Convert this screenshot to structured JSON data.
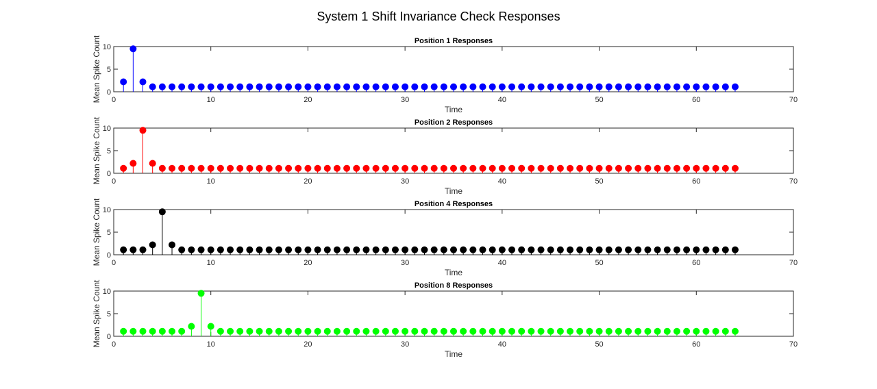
{
  "figure": {
    "title": "System 1 Shift Invariance Check Responses"
  },
  "chart_data": [
    {
      "type": "stem",
      "title": "Position 1 Responses",
      "xlabel": "Time",
      "ylabel": "Mean Spike Count",
      "xlim": [
        0,
        70
      ],
      "ylim": [
        0,
        10
      ],
      "xticks": [
        0,
        10,
        20,
        30,
        40,
        50,
        60,
        70
      ],
      "yticks": [
        0,
        5,
        10
      ],
      "color": "#0000ff",
      "peak_index": 2,
      "values": [
        2.2,
        9.5,
        2.2,
        1.1,
        1.1,
        1.1,
        1.1,
        1.1,
        1.1,
        1.1,
        1.1,
        1.1,
        1.1,
        1.1,
        1.1,
        1.1,
        1.1,
        1.1,
        1.1,
        1.1,
        1.1,
        1.1,
        1.1,
        1.1,
        1.1,
        1.1,
        1.1,
        1.1,
        1.1,
        1.1,
        1.1,
        1.1,
        1.1,
        1.1,
        1.1,
        1.1,
        1.1,
        1.1,
        1.1,
        1.1,
        1.1,
        1.1,
        1.1,
        1.1,
        1.1,
        1.1,
        1.1,
        1.1,
        1.1,
        1.1,
        1.1,
        1.1,
        1.1,
        1.1,
        1.1,
        1.1,
        1.1,
        1.1,
        1.1,
        1.1,
        1.1,
        1.1,
        1.1,
        1.1
      ]
    },
    {
      "type": "stem",
      "title": "Position 2 Responses",
      "xlabel": "Time",
      "ylabel": "Mean Spike Count",
      "xlim": [
        0,
        70
      ],
      "ylim": [
        0,
        10
      ],
      "xticks": [
        0,
        10,
        20,
        30,
        40,
        50,
        60,
        70
      ],
      "yticks": [
        0,
        5,
        10
      ],
      "color": "#ff0000",
      "peak_index": 3,
      "values": [
        1.1,
        2.2,
        9.5,
        2.2,
        1.1,
        1.1,
        1.1,
        1.1,
        1.1,
        1.1,
        1.1,
        1.1,
        1.1,
        1.1,
        1.1,
        1.1,
        1.1,
        1.1,
        1.1,
        1.1,
        1.1,
        1.1,
        1.1,
        1.1,
        1.1,
        1.1,
        1.1,
        1.1,
        1.1,
        1.1,
        1.1,
        1.1,
        1.1,
        1.1,
        1.1,
        1.1,
        1.1,
        1.1,
        1.1,
        1.1,
        1.1,
        1.1,
        1.1,
        1.1,
        1.1,
        1.1,
        1.1,
        1.1,
        1.1,
        1.1,
        1.1,
        1.1,
        1.1,
        1.1,
        1.1,
        1.1,
        1.1,
        1.1,
        1.1,
        1.1,
        1.1,
        1.1,
        1.1,
        1.1
      ]
    },
    {
      "type": "stem",
      "title": "Position 4 Responses",
      "xlabel": "Time",
      "ylabel": "Mean Spike Count",
      "xlim": [
        0,
        70
      ],
      "ylim": [
        0,
        10
      ],
      "xticks": [
        0,
        10,
        20,
        30,
        40,
        50,
        60,
        70
      ],
      "yticks": [
        0,
        5,
        10
      ],
      "color": "#000000",
      "peak_index": 5,
      "values": [
        1.1,
        1.1,
        1.1,
        2.2,
        9.5,
        2.2,
        1.1,
        1.1,
        1.1,
        1.1,
        1.1,
        1.1,
        1.1,
        1.1,
        1.1,
        1.1,
        1.1,
        1.1,
        1.1,
        1.1,
        1.1,
        1.1,
        1.1,
        1.1,
        1.1,
        1.1,
        1.1,
        1.1,
        1.1,
        1.1,
        1.1,
        1.1,
        1.1,
        1.1,
        1.1,
        1.1,
        1.1,
        1.1,
        1.1,
        1.1,
        1.1,
        1.1,
        1.1,
        1.1,
        1.1,
        1.1,
        1.1,
        1.1,
        1.1,
        1.1,
        1.1,
        1.1,
        1.1,
        1.1,
        1.1,
        1.1,
        1.1,
        1.1,
        1.1,
        1.1,
        1.1,
        1.1,
        1.1,
        1.1
      ]
    },
    {
      "type": "stem",
      "title": "Position 8 Responses",
      "xlabel": "Time",
      "ylabel": "Mean Spike Count",
      "xlim": [
        0,
        70
      ],
      "ylim": [
        0,
        10
      ],
      "xticks": [
        0,
        10,
        20,
        30,
        40,
        50,
        60,
        70
      ],
      "yticks": [
        0,
        5,
        10
      ],
      "color": "#00ff00",
      "peak_index": 9,
      "values": [
        1.1,
        1.1,
        1.1,
        1.1,
        1.1,
        1.1,
        1.1,
        2.2,
        9.5,
        2.2,
        1.1,
        1.1,
        1.1,
        1.1,
        1.1,
        1.1,
        1.1,
        1.1,
        1.1,
        1.1,
        1.1,
        1.1,
        1.1,
        1.1,
        1.1,
        1.1,
        1.1,
        1.1,
        1.1,
        1.1,
        1.1,
        1.1,
        1.1,
        1.1,
        1.1,
        1.1,
        1.1,
        1.1,
        1.1,
        1.1,
        1.1,
        1.1,
        1.1,
        1.1,
        1.1,
        1.1,
        1.1,
        1.1,
        1.1,
        1.1,
        1.1,
        1.1,
        1.1,
        1.1,
        1.1,
        1.1,
        1.1,
        1.1,
        1.1,
        1.1,
        1.1,
        1.1,
        1.1,
        1.1
      ]
    }
  ]
}
